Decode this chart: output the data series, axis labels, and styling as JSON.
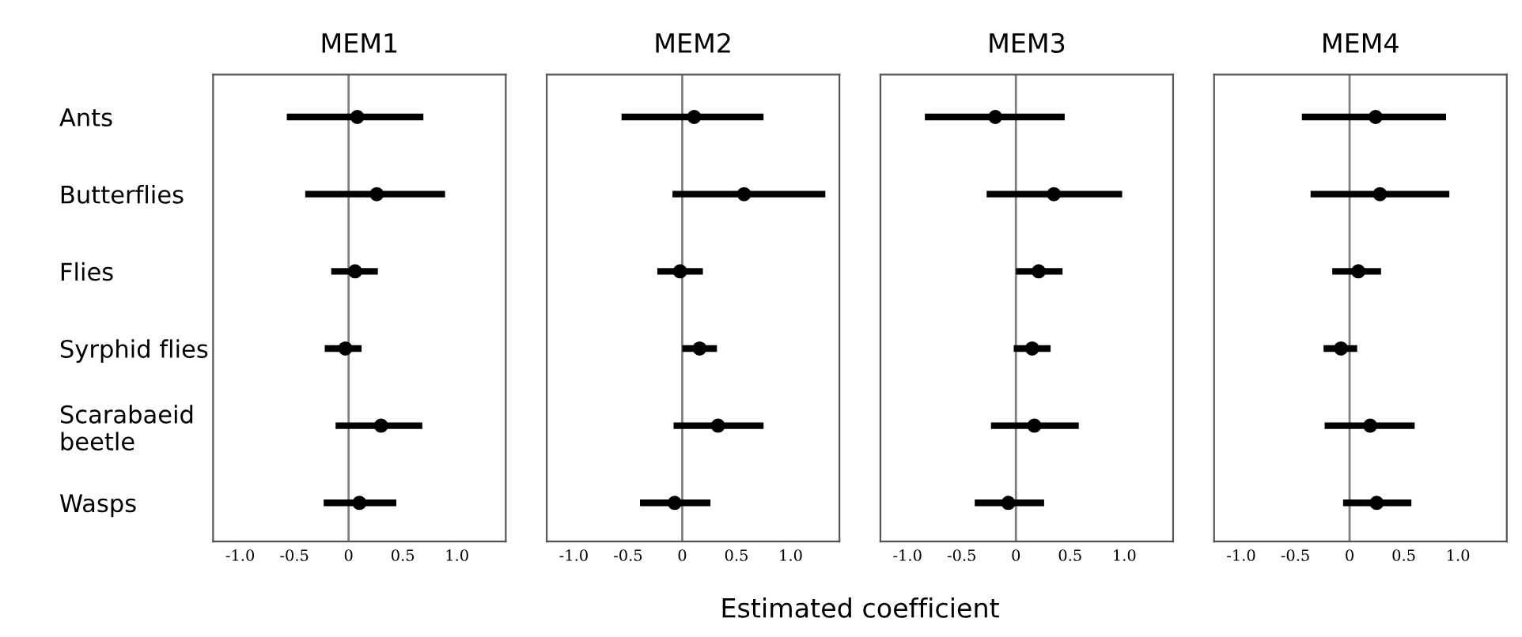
{
  "chart_data": [
    {
      "type": "scatter",
      "title": "MEM1",
      "orientation": "horizontal",
      "categories": [
        "Ants",
        "Butterflies",
        "Flies",
        "Syrphid flies",
        "Scarabaeid\nbeetle",
        "Wasps"
      ],
      "series": [
        {
          "color": "#000000",
          "values": [
            0.08,
            0.26,
            0.06,
            -0.03,
            0.3,
            0.1
          ],
          "errors": [
            [
              -0.57,
              0.69
            ],
            [
              -0.4,
              0.89
            ],
            [
              -0.16,
              0.27
            ],
            [
              -0.22,
              0.12
            ],
            [
              -0.12,
              0.68
            ],
            [
              -0.23,
              0.44
            ]
          ]
        }
      ],
      "xlim": [
        -1.25,
        1.45
      ],
      "xticks": [
        {
          "value": -1.0,
          "label": "-1.0"
        },
        {
          "value": -0.5,
          "label": "-0.5"
        },
        0,
        0.5,
        {
          "value": 1.0,
          "label": "1.0"
        }
      ],
      "ref_lines": [
        {
          "axis": "x",
          "value": 0,
          "color": "#808080"
        }
      ],
      "marker": "circle",
      "grid": false,
      "legend": false
    },
    {
      "type": "scatter",
      "title": "MEM2",
      "xlabel": "Estimated coefficient",
      "orientation": "horizontal",
      "categories": [
        null,
        null,
        null,
        null,
        null,
        null
      ],
      "series": [
        {
          "color": "#000000",
          "values": [
            0.11,
            0.57,
            -0.02,
            0.16,
            0.33,
            -0.07
          ],
          "errors": [
            [
              -0.56,
              0.75
            ],
            [
              -0.09,
              1.32
            ],
            [
              -0.23,
              0.19
            ],
            [
              0.0,
              0.32
            ],
            [
              -0.08,
              0.75
            ],
            [
              -0.39,
              0.26
            ]
          ]
        }
      ],
      "xlim": [
        -1.25,
        1.45
      ],
      "xticks": [
        {
          "value": -1.0,
          "label": "-1.0"
        },
        {
          "value": -0.5,
          "label": "-0.5"
        },
        0,
        0.5,
        {
          "value": 1.0,
          "label": "1.0"
        }
      ],
      "ref_lines": [
        {
          "axis": "x",
          "value": 0,
          "color": "#808080"
        }
      ],
      "marker": "circle",
      "tick_labels": "x",
      "grid": false,
      "legend": false
    },
    {
      "type": "scatter",
      "title": "MEM3",
      "orientation": "horizontal",
      "categories": [
        null,
        null,
        null,
        null,
        null,
        null
      ],
      "series": [
        {
          "color": "#000000",
          "values": [
            -0.19,
            0.35,
            0.21,
            0.15,
            0.17,
            -0.07
          ],
          "errors": [
            [
              -0.84,
              0.45
            ],
            [
              -0.27,
              0.98
            ],
            [
              0.0,
              0.43
            ],
            [
              -0.02,
              0.32
            ],
            [
              -0.23,
              0.58
            ],
            [
              -0.38,
              0.26
            ]
          ]
        }
      ],
      "xlim": [
        -1.25,
        1.45
      ],
      "xticks": [
        {
          "value": -1.0,
          "label": "-1.0"
        },
        {
          "value": -0.5,
          "label": "-0.5"
        },
        0,
        0.5,
        {
          "value": 1.0,
          "label": "1.0"
        }
      ],
      "ref_lines": [
        {
          "axis": "x",
          "value": 0,
          "color": "#808080"
        }
      ],
      "marker": "circle",
      "tick_labels": "x",
      "grid": false,
      "legend": false
    },
    {
      "type": "scatter",
      "title": "MEM4",
      "orientation": "horizontal",
      "categories": [
        null,
        null,
        null,
        null,
        null,
        null
      ],
      "series": [
        {
          "color": "#000000",
          "values": [
            0.24,
            0.28,
            0.08,
            -0.08,
            0.19,
            0.25
          ],
          "errors": [
            [
              -0.44,
              0.89
            ],
            [
              -0.36,
              0.92
            ],
            [
              -0.16,
              0.29
            ],
            [
              -0.24,
              0.07
            ],
            [
              -0.23,
              0.6
            ],
            [
              -0.06,
              0.57
            ]
          ]
        }
      ],
      "xlim": [
        -1.25,
        1.45
      ],
      "xticks": [
        {
          "value": -1.0,
          "label": "-1.0"
        },
        {
          "value": -0.5,
          "label": "-0.5"
        },
        0,
        0.5,
        {
          "value": 1.0,
          "label": "1.0"
        }
      ],
      "ref_lines": [
        {
          "axis": "x",
          "value": 0,
          "color": "#808080"
        }
      ],
      "marker": "circle",
      "tick_labels": "x",
      "grid": false,
      "legend": false
    }
  ]
}
